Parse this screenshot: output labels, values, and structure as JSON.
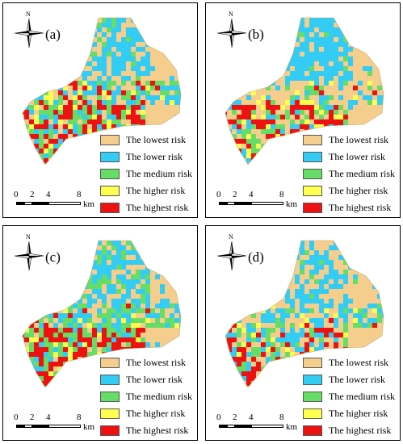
{
  "panels": [
    {
      "label": "(a)",
      "north": "N"
    },
    {
      "label": "(b)",
      "north": "N"
    },
    {
      "label": "(c)",
      "north": "N"
    },
    {
      "label": "(d)",
      "north": "N"
    }
  ],
  "legend": {
    "items": [
      {
        "label": "The lowest risk",
        "color": "#f5cd8c"
      },
      {
        "label": "The lower risk",
        "color": "#33ccf5"
      },
      {
        "label": "The medium risk",
        "color": "#66dd66"
      },
      {
        "label": "The higher risk",
        "color": "#ffff4d"
      },
      {
        "label": "The highest risk",
        "color": "#ee1111"
      }
    ]
  },
  "scale_bar": {
    "ticks": [
      "0",
      "2",
      "4",
      "8"
    ],
    "unit": "km"
  }
}
